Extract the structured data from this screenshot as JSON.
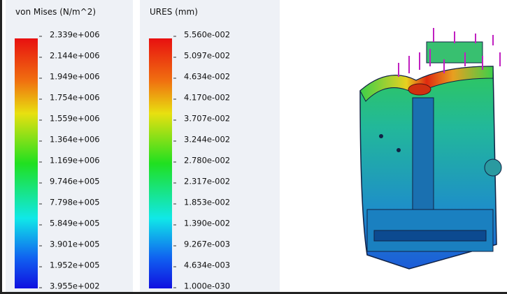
{
  "legends": [
    {
      "title": "von Mises (N/m^2)",
      "labels": [
        "2.339e+006",
        "2.144e+006",
        "1.949e+006",
        "1.754e+006",
        "1.559e+006",
        "1.364e+006",
        "1.169e+006",
        "9.746e+005",
        "7.798e+005",
        "5.849e+005",
        "3.901e+005",
        "1.952e+005",
        "3.955e+002"
      ]
    },
    {
      "title": "URES (mm)",
      "labels": [
        "5.560e-002",
        "5.097e-002",
        "4.634e-002",
        "4.170e-002",
        "3.707e-002",
        "3.244e-002",
        "2.780e-002",
        "2.317e-002",
        "1.853e-002",
        "1.390e-002",
        "9.267e-003",
        "4.634e-003",
        "1.000e-030"
      ]
    }
  ]
}
